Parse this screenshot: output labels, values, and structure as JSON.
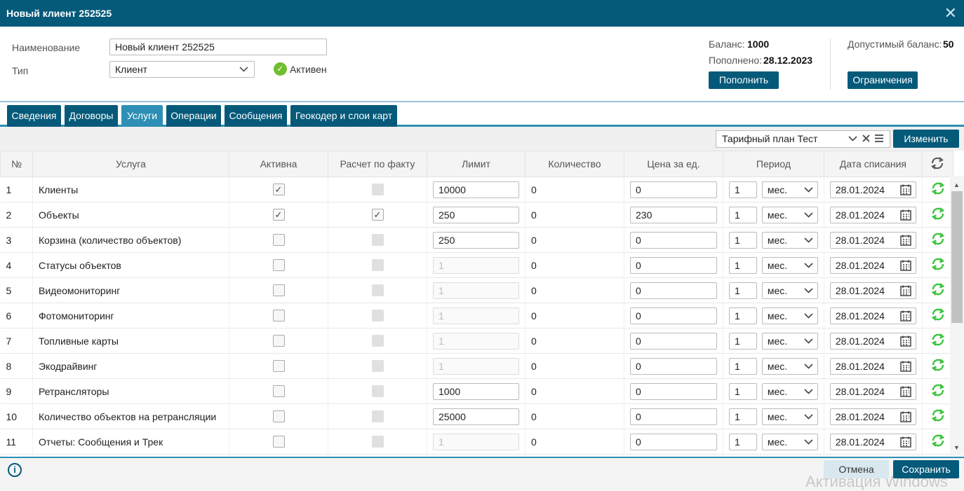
{
  "window": {
    "title": "Новый клиент 252525",
    "close": "✕"
  },
  "form": {
    "name_label": "Наименование",
    "name_value": "Новый клиент 252525",
    "type_label": "Тип",
    "type_value": "Клиент",
    "status_text": "Активен"
  },
  "balance": {
    "balance_label": "Баланс:",
    "balance_value": "1000",
    "topup_label": "Пополнено:",
    "topup_value": "28.12.2023",
    "topup_button": "Пополнить",
    "allowed_label": "Допустимый баланс:",
    "allowed_value": "50",
    "limits_button": "Ограничения"
  },
  "tabs": [
    {
      "label": "Сведения",
      "active": false
    },
    {
      "label": "Договоры",
      "active": false
    },
    {
      "label": "Услуги",
      "active": true
    },
    {
      "label": "Операции",
      "active": false
    },
    {
      "label": "Сообщения",
      "active": false
    },
    {
      "label": "Геокодер и слои карт",
      "active": false
    }
  ],
  "toolbar": {
    "tariff_value": "Тарифный план Тест",
    "change_button": "Изменить"
  },
  "table": {
    "headers": [
      "№",
      "Услуга",
      "Активна",
      "Расчет по факту",
      "Лимит",
      "Количество",
      "Цена за ед.",
      "Период",
      "Дата списания"
    ],
    "rows": [
      {
        "n": "1",
        "service": "Клиенты",
        "active": true,
        "fact": false,
        "fact_enabled": false,
        "limit": "10000",
        "limit_enabled": true,
        "qty": "0",
        "price": "0",
        "period_n": "1",
        "period_unit": "мес.",
        "date": "28.01.2024"
      },
      {
        "n": "2",
        "service": "Объекты",
        "active": true,
        "fact": true,
        "fact_enabled": true,
        "limit": "250",
        "limit_enabled": true,
        "qty": "0",
        "price": "230",
        "period_n": "1",
        "period_unit": "мес.",
        "date": "28.01.2024"
      },
      {
        "n": "3",
        "service": "Корзина (количество объектов)",
        "active": false,
        "fact": false,
        "fact_enabled": false,
        "limit": "250",
        "limit_enabled": true,
        "qty": "0",
        "price": "0",
        "period_n": "1",
        "period_unit": "мес.",
        "date": "28.01.2024"
      },
      {
        "n": "4",
        "service": "Статусы объектов",
        "active": false,
        "fact": false,
        "fact_enabled": false,
        "limit": "1",
        "limit_enabled": false,
        "qty": "0",
        "price": "0",
        "period_n": "1",
        "period_unit": "мес.",
        "date": "28.01.2024"
      },
      {
        "n": "5",
        "service": "Видеомониторинг",
        "active": false,
        "fact": false,
        "fact_enabled": false,
        "limit": "1",
        "limit_enabled": false,
        "qty": "0",
        "price": "0",
        "period_n": "1",
        "period_unit": "мес.",
        "date": "28.01.2024"
      },
      {
        "n": "6",
        "service": "Фотомониторинг",
        "active": false,
        "fact": false,
        "fact_enabled": false,
        "limit": "1",
        "limit_enabled": false,
        "qty": "0",
        "price": "0",
        "period_n": "1",
        "period_unit": "мес.",
        "date": "28.01.2024"
      },
      {
        "n": "7",
        "service": "Топливные карты",
        "active": false,
        "fact": false,
        "fact_enabled": false,
        "limit": "1",
        "limit_enabled": false,
        "qty": "0",
        "price": "0",
        "period_n": "1",
        "period_unit": "мес.",
        "date": "28.01.2024"
      },
      {
        "n": "8",
        "service": "Экодрайвинг",
        "active": false,
        "fact": false,
        "fact_enabled": false,
        "limit": "1",
        "limit_enabled": false,
        "qty": "0",
        "price": "0",
        "period_n": "1",
        "period_unit": "мес.",
        "date": "28.01.2024"
      },
      {
        "n": "9",
        "service": "Ретрансляторы",
        "active": false,
        "fact": false,
        "fact_enabled": false,
        "limit": "1000",
        "limit_enabled": true,
        "qty": "0",
        "price": "0",
        "period_n": "1",
        "period_unit": "мес.",
        "date": "28.01.2024"
      },
      {
        "n": "10",
        "service": "Количество объектов на ретрансляции",
        "active": false,
        "fact": false,
        "fact_enabled": false,
        "limit": "25000",
        "limit_enabled": true,
        "qty": "0",
        "price": "0",
        "period_n": "1",
        "period_unit": "мес.",
        "date": "28.01.2024"
      },
      {
        "n": "11",
        "service": "Отчеты: Сообщения и Трек",
        "active": false,
        "fact": false,
        "fact_enabled": false,
        "limit": "1",
        "limit_enabled": false,
        "qty": "0",
        "price": "0",
        "period_n": "1",
        "period_unit": "мес.",
        "date": "28.01.2024"
      }
    ]
  },
  "footer": {
    "cancel_button": "Отмена",
    "save_button": "Сохранить",
    "watermark": "Активация Windows"
  },
  "colors": {
    "header_bg": "#055a7a",
    "active_tab": "#2d8fb5",
    "refresh_green": "#3cc43c",
    "ok_green": "#6fbe2e"
  },
  "icons": [
    "close-icon",
    "chevron-down-icon",
    "check-circle-icon",
    "clear-icon",
    "list-icon",
    "calendar-icon",
    "refresh-icon",
    "info-icon"
  ]
}
